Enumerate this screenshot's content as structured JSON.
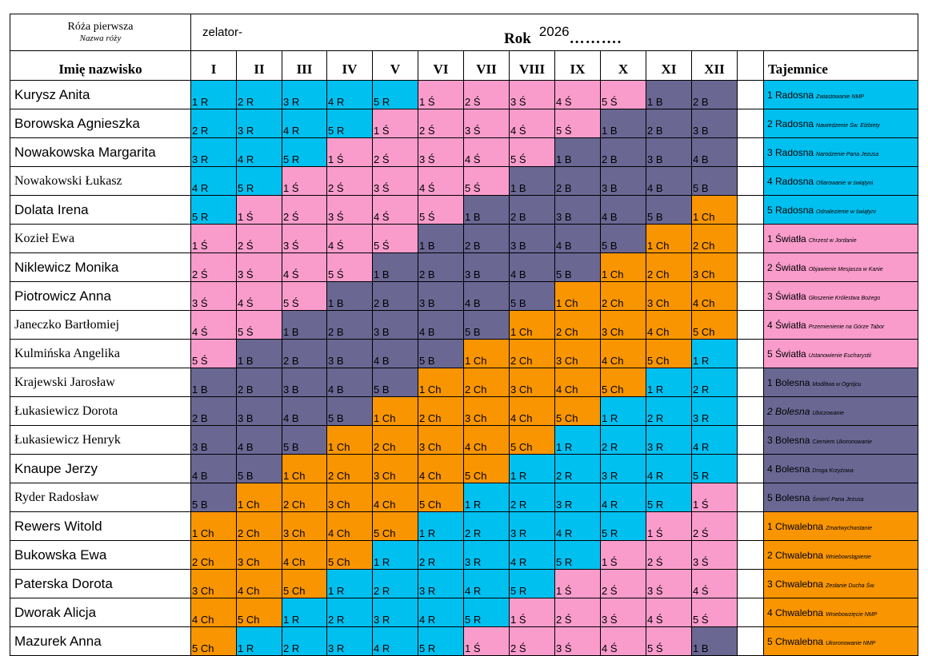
{
  "header": {
    "rose_title": "Róża pierwsza",
    "rose_subtitle": "Nazwa róży",
    "zelator": "zelator-",
    "rok_label": "Rok",
    "rok_value": "2026",
    "rok_dots": "……….",
    "name_header": "Imię nazwisko",
    "months": [
      "I",
      "II",
      "III",
      "IV",
      "V",
      "VI",
      "VII",
      "VIII",
      "IX",
      "X",
      "XI",
      "XII"
    ],
    "tajemnice_header": "Tajemnice"
  },
  "colors": {
    "R": "#00c0f0",
    "S": "#f99ccc",
    "B": "#6a6793",
    "Ch": "#f99500"
  },
  "mysteries": [
    {
      "label": "1 R",
      "cls": "R"
    },
    {
      "label": "2 R",
      "cls": "R"
    },
    {
      "label": "3 R",
      "cls": "R"
    },
    {
      "label": "4 R",
      "cls": "R"
    },
    {
      "label": "5 R",
      "cls": "R"
    },
    {
      "label": "1 Ś",
      "cls": "S"
    },
    {
      "label": "2 Ś",
      "cls": "S"
    },
    {
      "label": "3 Ś",
      "cls": "S"
    },
    {
      "label": "4 Ś",
      "cls": "S"
    },
    {
      "label": "5 Ś",
      "cls": "S"
    },
    {
      "label": "1 B",
      "cls": "B"
    },
    {
      "label": "2 B",
      "cls": "B"
    },
    {
      "label": "3 B",
      "cls": "B"
    },
    {
      "label": "4 B",
      "cls": "B"
    },
    {
      "label": "5 B",
      "cls": "B"
    },
    {
      "label": "1 Ch",
      "cls": "Ch"
    },
    {
      "label": "2 Ch",
      "cls": "Ch"
    },
    {
      "label": "3 Ch",
      "cls": "Ch"
    },
    {
      "label": "4 Ch",
      "cls": "Ch"
    },
    {
      "label": "5 Ch",
      "cls": "Ch"
    }
  ],
  "members": [
    {
      "name": "Kurysz Anita",
      "serif": false
    },
    {
      "name": "Borowska Agnieszka",
      "serif": false
    },
    {
      "name": "Nowakowska Margarita",
      "serif": false
    },
    {
      "name": "Nowakowski Łukasz",
      "serif": true
    },
    {
      "name": "Dolata Irena",
      "serif": false
    },
    {
      "name": "Kozieł Ewa",
      "serif": true
    },
    {
      "name": "Niklewicz Monika",
      "serif": false
    },
    {
      "name": "Piotrowicz Anna",
      "serif": false
    },
    {
      "name": "Janeczko Bartłomiej",
      "serif": true
    },
    {
      "name": "Kulmińska Angelika",
      "serif": true
    },
    {
      "name": "Krajewski Jarosław",
      "serif": true
    },
    {
      "name": "Łukasiewicz Dorota",
      "serif": true
    },
    {
      "name": "Łukasiewicz Henryk",
      "serif": true
    },
    {
      "name": "Knaupe Jerzy",
      "serif": false
    },
    {
      "name": "Ryder Radosław",
      "serif": true
    },
    {
      "name": "Rewers Witold",
      "serif": false
    },
    {
      "name": "Bukowska Ewa",
      "serif": false
    },
    {
      "name": "Paterska Dorota",
      "serif": false
    },
    {
      "name": "Dworak Alicja",
      "serif": false
    },
    {
      "name": "Mazurek Anna",
      "serif": false
    }
  ],
  "tajemnice": [
    {
      "title": "1 Radosna",
      "desc": "Zwiastowanie NMP",
      "cls": "R"
    },
    {
      "title": "2 Radosna",
      "desc": "Nawiedzenie Św. Elżbiety",
      "cls": "R"
    },
    {
      "title": "3 Radosna",
      "desc": "Narodzenie Pana Jezusa",
      "cls": "R"
    },
    {
      "title": "4 Radosna",
      "desc": "Ofiarowanie w świątyni",
      "cls": "R"
    },
    {
      "title": "5 Radosna",
      "desc": "Odnalezienie w świątyni",
      "cls": "R"
    },
    {
      "title": "1 Światła",
      "desc": "Chrzest w Jordanie",
      "cls": "S"
    },
    {
      "title": "2 Światła",
      "desc": "Objawienie Mesjasza w Kanie",
      "cls": "S"
    },
    {
      "title": "3 Światła",
      "desc": "Głoszenie Królestwa Bożego",
      "cls": "S"
    },
    {
      "title": "4 Światła",
      "desc": "Przemienienie na Górze Tabor",
      "cls": "S"
    },
    {
      "title": "5 Światła",
      "desc": "Ustanowienie Eucharystii",
      "cls": "S"
    },
    {
      "title": "1 Bolesna",
      "desc": "Modlitwa w Ogrójcu",
      "cls": "B"
    },
    {
      "title": "2 Bolesna",
      "desc": "Ubiczowanie",
      "cls": "B"
    },
    {
      "title": "3 Bolesna",
      "desc": "Cierniem Ukoronowanie",
      "cls": "B"
    },
    {
      "title": "4 Bolesna",
      "desc": "Droga Krzyżowa",
      "cls": "B"
    },
    {
      "title": "5 Bolesna",
      "desc": "Śmierć Pana Jezusa",
      "cls": "B"
    },
    {
      "title": "1 Chwalebna",
      "desc": "Zmartwychwstanie",
      "cls": "Ch"
    },
    {
      "title": "2 Chwalebna",
      "desc": "Wniebowstąpienie",
      "cls": "Ch"
    },
    {
      "title": "3 Chwalebna",
      "desc": "Zesłanie Ducha Św.",
      "cls": "Ch"
    },
    {
      "title": "4 Chwalebna",
      "desc": "Wniebowzięcie NMP",
      "cls": "Ch"
    },
    {
      "title": "5 Chwalebna",
      "desc": "Ukoronowanie NMP",
      "cls": "Ch"
    }
  ]
}
